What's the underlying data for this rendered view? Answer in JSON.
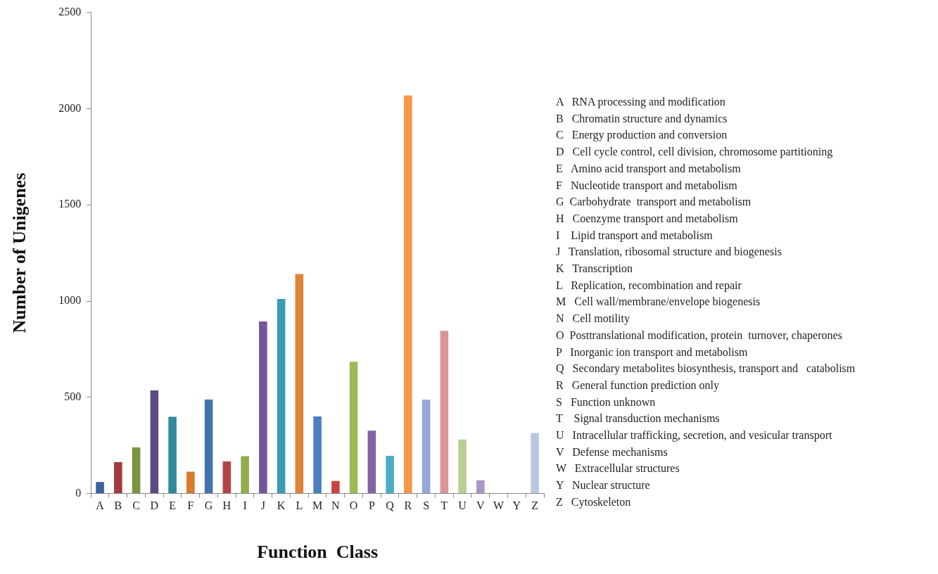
{
  "chart_data": {
    "type": "bar",
    "xlabel": "Function  Class",
    "ylabel": "Number of Unigenes",
    "categories": [
      "A",
      "B",
      "C",
      "D",
      "E",
      "F",
      "G",
      "H",
      "I",
      "J",
      "K",
      "L",
      "M",
      "N",
      "O",
      "P",
      "Q",
      "R",
      "S",
      "T",
      "U",
      "V",
      "W",
      "Y",
      "Z"
    ],
    "values": [
      60,
      163,
      240,
      536,
      399,
      114,
      488,
      167,
      194,
      894,
      1011,
      1141,
      401,
      65,
      685,
      327,
      196,
      2068,
      487,
      846,
      281,
      69,
      0,
      0,
      315
    ],
    "colors": [
      "#3a5f9a",
      "#a23b3b",
      "#7a9440",
      "#5e4a80",
      "#2f8a9e",
      "#d97a2c",
      "#4373ad",
      "#b54545",
      "#8fad4a",
      "#73559b",
      "#3a9bb5",
      "#e0843a",
      "#4a7fc0",
      "#c84444",
      "#9bbb59",
      "#8064a2",
      "#4bacc6",
      "#f79646",
      "#8ea9d6",
      "#d99594",
      "#b8cf94",
      "#a896c4",
      "#cccccc",
      "#cccccc",
      "#b8c7e2"
    ],
    "ylim": [
      0,
      2500
    ],
    "yticks": [
      0,
      500,
      1000,
      1500,
      2000,
      2500
    ],
    "grid": false,
    "legend": false,
    "annotations": [
      "A   RNA processing and modification",
      "B   Chromatin structure and dynamics",
      "C   Energy production and conversion",
      "D   Cell cycle control, cell division, chromosome partitioning",
      "E   Amino acid transport and metabolism",
      "F   Nucleotide transport and metabolism",
      "G  Carbohydrate  transport and metabolism",
      "H   Coenzyme transport and metabolism",
      "I    Lipid transport and metabolism",
      "J   Translation, ribosomal structure and biogenesis",
      "K   Transcription",
      "L   Replication, recombination and repair",
      "M   Cell wall/membrane/envelope biogenesis",
      "N   Cell motility",
      "O  Posttranslational modification, protein  turnover, chaperones",
      "P   Inorganic ion transport and metabolism",
      "Q   Secondary metabolites biosynthesis, transport and   catabolism",
      "R   General function prediction only",
      "S   Function unknown",
      "T    Signal transduction mechanisms",
      "U   Intracellular trafficking, secretion, and vesicular transport",
      "V   Defense mechanisms",
      "W   Extracellular structures",
      "Y   Nuclear structure",
      "Z   Cytoskeleton"
    ]
  }
}
